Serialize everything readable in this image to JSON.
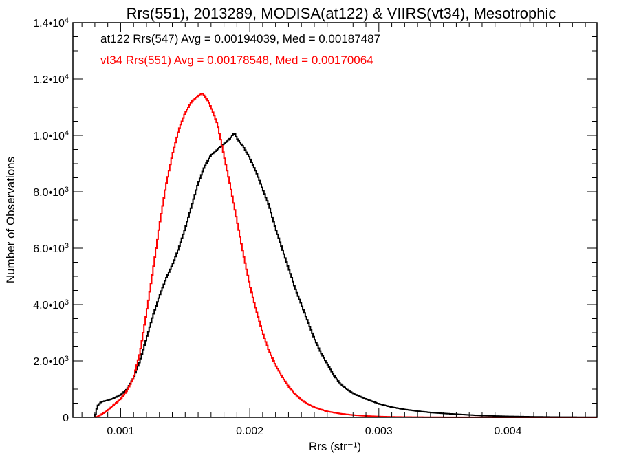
{
  "chart_data": {
    "type": "line",
    "title": "Rrs(551), 2013289, MODISA(at122) & VIIRS(vt34), Mesotrophic",
    "xlabel": "Rrs (str⁻¹)",
    "ylabel": "Number of Observations",
    "xlim": [
      0.00063,
      0.00469
    ],
    "ylim": [
      0,
      14000
    ],
    "x_ticks": [
      {
        "value": 0.001,
        "label": "0.001"
      },
      {
        "value": 0.002,
        "label": "0.002"
      },
      {
        "value": 0.003,
        "label": "0.003"
      },
      {
        "value": 0.004,
        "label": "0.004"
      }
    ],
    "y_ticks": [
      {
        "value": 0,
        "label": "0",
        "exp": ""
      },
      {
        "value": 2000,
        "label": "2.0•10",
        "exp": "3"
      },
      {
        "value": 4000,
        "label": "4.0•10",
        "exp": "3"
      },
      {
        "value": 6000,
        "label": "6.0•10",
        "exp": "3"
      },
      {
        "value": 8000,
        "label": "8.0•10",
        "exp": "3"
      },
      {
        "value": 10000,
        "label": "1.0•10",
        "exp": "4"
      },
      {
        "value": 12000,
        "label": "1.2•10",
        "exp": "4"
      },
      {
        "value": 14000,
        "label": "1.4•10",
        "exp": "4"
      }
    ],
    "grid": false,
    "step_histogram": true,
    "series": [
      {
        "color": "#000000",
        "x": [
          0.0008,
          0.00082,
          0.00085,
          0.0009,
          0.00095,
          0.001,
          0.00105,
          0.0011,
          0.00115,
          0.0012,
          0.00125,
          0.0013,
          0.00135,
          0.0014,
          0.00145,
          0.0015,
          0.00155,
          0.0016,
          0.00165,
          0.0017,
          0.00175,
          0.0018,
          0.00185,
          0.00188,
          0.0019,
          0.00195,
          0.002,
          0.00205,
          0.0021,
          0.00215,
          0.0022,
          0.00225,
          0.0023,
          0.00235,
          0.0024,
          0.00245,
          0.0025,
          0.00255,
          0.0026,
          0.00265,
          0.0027,
          0.00275,
          0.0028,
          0.0029,
          0.003,
          0.0031,
          0.0032,
          0.0033,
          0.0034,
          0.0036,
          0.0038,
          0.004,
          0.0042,
          0.0044,
          0.00469
        ],
        "y": [
          0,
          400,
          550,
          600,
          680,
          800,
          1000,
          1400,
          2000,
          2800,
          3600,
          4300,
          4900,
          5400,
          6000,
          6700,
          7500,
          8300,
          8900,
          9300,
          9500,
          9700,
          9900,
          10100,
          9900,
          9600,
          9200,
          8700,
          8100,
          7500,
          6700,
          6000,
          5300,
          4600,
          4000,
          3400,
          2800,
          2300,
          1900,
          1500,
          1200,
          1000,
          850,
          650,
          480,
          360,
          280,
          220,
          170,
          110,
          60,
          35,
          20,
          10,
          5
        ]
      },
      {
        "color": "#ff0000",
        "x": [
          0.0008,
          0.00082,
          0.00085,
          0.0009,
          0.00095,
          0.001,
          0.00105,
          0.0011,
          0.00115,
          0.0012,
          0.00125,
          0.0013,
          0.00135,
          0.0014,
          0.00145,
          0.0015,
          0.00155,
          0.0016,
          0.00163,
          0.00165,
          0.00168,
          0.0017,
          0.00175,
          0.0018,
          0.00185,
          0.0019,
          0.00195,
          0.002,
          0.00205,
          0.0021,
          0.00215,
          0.0022,
          0.00225,
          0.0023,
          0.00235,
          0.0024,
          0.00245,
          0.0025,
          0.00255,
          0.0026,
          0.0027,
          0.0028,
          0.0029,
          0.003,
          0.0031,
          0.0032,
          0.0034,
          0.0036,
          0.0038,
          0.004,
          0.0043,
          0.00469
        ],
        "y": [
          0,
          20,
          100,
          250,
          450,
          650,
          950,
          1400,
          2300,
          3700,
          5200,
          6800,
          8200,
          9300,
          10200,
          10800,
          11200,
          11400,
          11500,
          11400,
          11200,
          11000,
          10400,
          9300,
          8200,
          7000,
          5800,
          4700,
          3800,
          3000,
          2350,
          1850,
          1450,
          1100,
          830,
          620,
          470,
          360,
          280,
          210,
          130,
          80,
          50,
          30,
          18,
          12,
          6,
          3,
          2,
          1,
          0,
          0
        ]
      }
    ],
    "annotations": [
      {
        "text": "at122 Rrs(547) Avg = 0.00194039, Med = 0.00187487",
        "color": "#000000"
      },
      {
        "text": "vt34 Rrs(551) Avg = 0.00178548, Med = 0.00170064",
        "color": "#ff0000"
      }
    ]
  }
}
